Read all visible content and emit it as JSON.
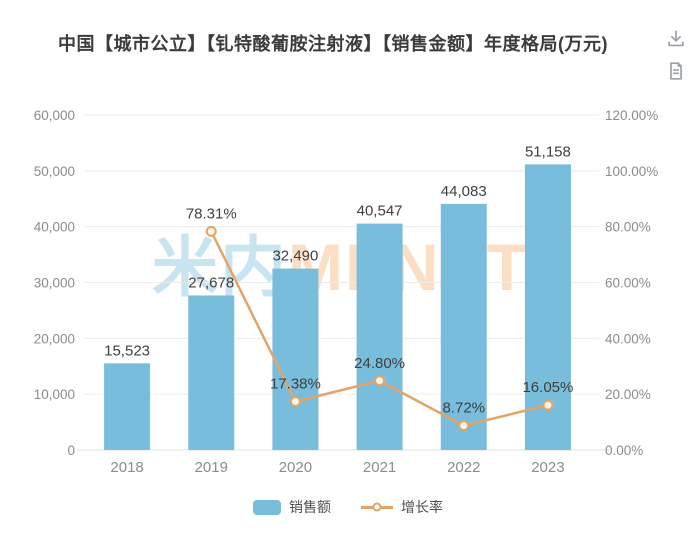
{
  "header": {
    "title": "中国【城市公立】【钆特酸葡胺注射液】【销售金额】年度格局(万元)"
  },
  "toolbar": {
    "download_icon": "download-icon",
    "report_icon": "report-icon"
  },
  "watermark": {
    "part1": "米内",
    "part2": "MENET"
  },
  "colors": {
    "bar": "#78bddb",
    "line": "#e2a567",
    "marker_fill": "#fdf3e7",
    "grid": "#ececec",
    "axis_line": "#e0e0e0",
    "axis_label": "#8c8c8c",
    "data_label": "#404040",
    "icon": "#9aa0a6",
    "legend_text": "#4f4f4f"
  },
  "chart_data": {
    "type": "combo",
    "title": "中国【城市公立】【钆特酸葡胺注射液】【销售金额】年度格局(万元)",
    "categories": [
      "2018",
      "2019",
      "2020",
      "2021",
      "2022",
      "2023"
    ],
    "series": [
      {
        "name": "销售额",
        "type": "bar",
        "axis": "left",
        "values": [
          15523,
          27678,
          32490,
          40547,
          44083,
          51158
        ],
        "labels": [
          "15,523",
          "27,678",
          "32,490",
          "40,547",
          "44,083",
          "51,158"
        ]
      },
      {
        "name": "增长率",
        "type": "line",
        "axis": "right",
        "values": [
          null,
          78.31,
          17.38,
          24.8,
          8.72,
          16.05
        ],
        "labels": [
          null,
          "78.31%",
          "17.38%",
          "24.80%",
          "8.72%",
          "16.05%"
        ]
      }
    ],
    "left_axis": {
      "min": 0,
      "max": 60000,
      "tick_labels": [
        "0",
        "10,000",
        "20,000",
        "30,000",
        "40,000",
        "50,000",
        "60,000"
      ]
    },
    "right_axis": {
      "min": 0,
      "max": 120,
      "tick_labels": [
        "0.00%",
        "20.00%",
        "40.00%",
        "60.00%",
        "80.00%",
        "100.00%",
        "120.00%"
      ]
    },
    "grid": true,
    "legend_position": "bottom",
    "legend": [
      "销售额",
      "增长率"
    ]
  }
}
